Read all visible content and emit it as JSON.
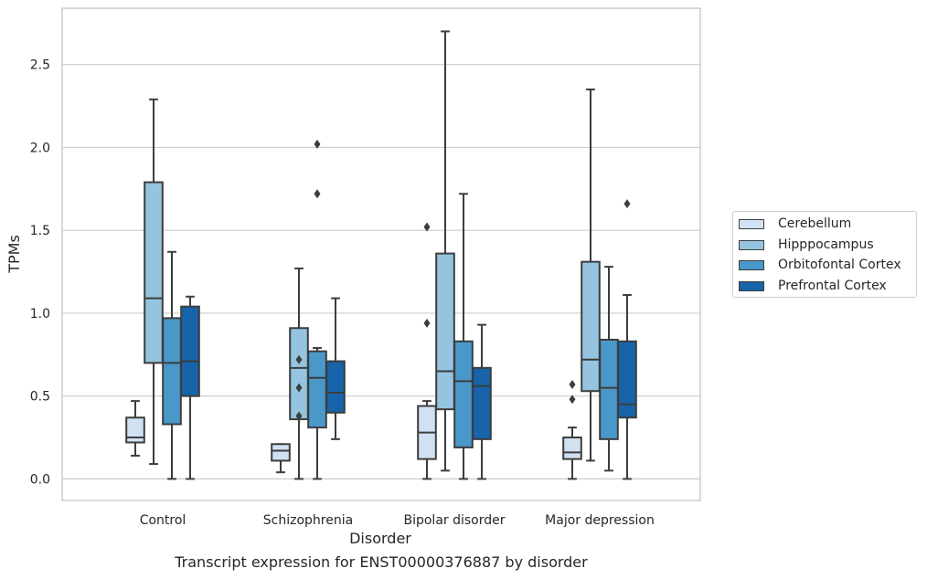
{
  "chart_data": {
    "type": "box",
    "xlabel": "Disorder",
    "ylabel": "TPMs",
    "ylim": [
      -0.13,
      2.84
    ],
    "yticks": [
      "0.0",
      "0.5",
      "1.0",
      "1.5",
      "2.0",
      "2.5"
    ],
    "grid": "horizontal",
    "legend_position": "right",
    "categories": [
      "Control",
      "Schizophrenia",
      "Bipolar disorder",
      "Major depression"
    ],
    "series": [
      {
        "name": "Cerebellum",
        "color": "#d0e1f2",
        "boxes": [
          {
            "whisker_low": 0.14,
            "q1": 0.22,
            "median": 0.25,
            "q3": 0.37,
            "whisker_high": 0.47,
            "outliers": []
          },
          {
            "whisker_low": 0.04,
            "q1": 0.11,
            "median": 0.17,
            "q3": 0.21,
            "whisker_high": 0.21,
            "outliers": []
          },
          {
            "whisker_low": 0.0,
            "q1": 0.12,
            "median": 0.28,
            "q3": 0.44,
            "whisker_high": 0.47,
            "outliers": [
              0.94,
              1.52
            ]
          },
          {
            "whisker_low": 0.0,
            "q1": 0.12,
            "median": 0.16,
            "q3": 0.25,
            "whisker_high": 0.31,
            "outliers": [
              0.48,
              0.57
            ]
          }
        ]
      },
      {
        "name": "Hipppocampus",
        "color": "#94c4df",
        "boxes": [
          {
            "whisker_low": 0.09,
            "q1": 0.7,
            "median": 1.09,
            "q3": 1.79,
            "whisker_high": 2.29,
            "outliers": []
          },
          {
            "whisker_low": 0.0,
            "q1": 0.36,
            "median": 0.67,
            "q3": 0.91,
            "whisker_high": 1.27,
            "outliers": [
              0.38,
              0.55,
              0.72
            ]
          },
          {
            "whisker_low": 0.05,
            "q1": 0.42,
            "median": 0.65,
            "q3": 1.36,
            "whisker_high": 2.7,
            "outliers": []
          },
          {
            "whisker_low": 0.11,
            "q1": 0.53,
            "median": 0.72,
            "q3": 1.31,
            "whisker_high": 2.35,
            "outliers": []
          }
        ]
      },
      {
        "name": "Orbitofontal Cortex",
        "color": "#4a98c9",
        "boxes": [
          {
            "whisker_low": 0.0,
            "q1": 0.33,
            "median": 0.7,
            "q3": 0.97,
            "whisker_high": 1.37,
            "outliers": []
          },
          {
            "whisker_low": 0.0,
            "q1": 0.31,
            "median": 0.61,
            "q3": 0.77,
            "whisker_high": 0.79,
            "outliers": [
              1.72,
              2.02
            ]
          },
          {
            "whisker_low": 0.0,
            "q1": 0.19,
            "median": 0.59,
            "q3": 0.83,
            "whisker_high": 1.72,
            "outliers": []
          },
          {
            "whisker_low": 0.05,
            "q1": 0.24,
            "median": 0.55,
            "q3": 0.84,
            "whisker_high": 1.28,
            "outliers": []
          }
        ]
      },
      {
        "name": "Prefrontal Cortex",
        "color": "#1764ab",
        "boxes": [
          {
            "whisker_low": 0.0,
            "q1": 0.5,
            "median": 0.71,
            "q3": 1.04,
            "whisker_high": 1.1,
            "outliers": []
          },
          {
            "whisker_low": 0.24,
            "q1": 0.4,
            "median": 0.52,
            "q3": 0.71,
            "whisker_high": 1.09,
            "outliers": []
          },
          {
            "whisker_low": 0.0,
            "q1": 0.24,
            "median": 0.56,
            "q3": 0.67,
            "whisker_high": 0.93,
            "outliers": []
          },
          {
            "whisker_low": 0.0,
            "q1": 0.37,
            "median": 0.45,
            "q3": 0.83,
            "whisker_high": 1.11,
            "outliers": [
              1.66
            ]
          }
        ]
      }
    ]
  },
  "caption": "Transcript expression for ENST00000376887 by disorder"
}
